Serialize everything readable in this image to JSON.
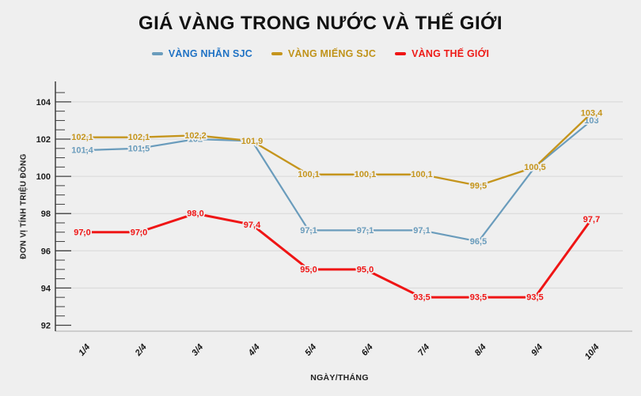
{
  "header": {
    "title": "GIÁ VÀNG TRONG NƯỚC VÀ THẾ GIỚI"
  },
  "chart_data": {
    "type": "line",
    "title": "GIÁ VÀNG TRONG NƯỚC VÀ THẾ GIỚI",
    "xlabel": "NGÀY/THÁNG",
    "ylabel": "ĐƠN VỊ TÍNH TRIỆU ĐỒNG",
    "categories": [
      "1/4",
      "2/4",
      "3/4",
      "4/4",
      "5/4",
      "6/4",
      "7/4",
      "8/4",
      "9/4",
      "10/4"
    ],
    "ylim": [
      92,
      104
    ],
    "y_major_tick": 2,
    "y_minor_tick": 0.5,
    "grid": "horizontal-major",
    "legend_position": "top",
    "decimal_separator": ",",
    "series": [
      {
        "id": "vang-nhan-sjc",
        "name": "VÀNG NHẪN SJC",
        "color": "#6a9cbc",
        "legend_text_color": "#1f72c4",
        "values": [
          101.4,
          101.5,
          102,
          101.9,
          97.1,
          97.1,
          97.1,
          96.5,
          100.5,
          103
        ],
        "labels": [
          "101,4",
          "101,5",
          "102",
          "101,9",
          "97,1",
          "97,1",
          "97,1",
          "96,5",
          "100,5",
          "103"
        ]
      },
      {
        "id": "vang-mieng-sjc",
        "name": "VÀNG MIẾNG SJC",
        "color": "#c5951d",
        "legend_text_color": "#c0931a",
        "values": [
          102.1,
          102.1,
          102.2,
          101.9,
          100.1,
          100.1,
          100.1,
          99.5,
          100.5,
          103.4
        ],
        "labels": [
          "102,1",
          "102,1",
          "102,2",
          "101,9",
          "100,1",
          "100,1",
          "100,1",
          "99,5",
          "100,5",
          "103,4"
        ]
      },
      {
        "id": "vang-the-gioi",
        "name": "VÀNG THẾ GIỚI",
        "color": "#ef1515",
        "legend_text_color": "#ee1b17",
        "values": [
          97,
          97,
          98,
          97.4,
          95,
          95,
          93.5,
          93.5,
          93.5,
          97.7
        ],
        "labels": [
          "97,0",
          "97,0",
          "98,0",
          "97,4",
          "95,0",
          "95,0",
          "93,5",
          "93,5",
          "93,5",
          "97,7"
        ]
      }
    ]
  }
}
